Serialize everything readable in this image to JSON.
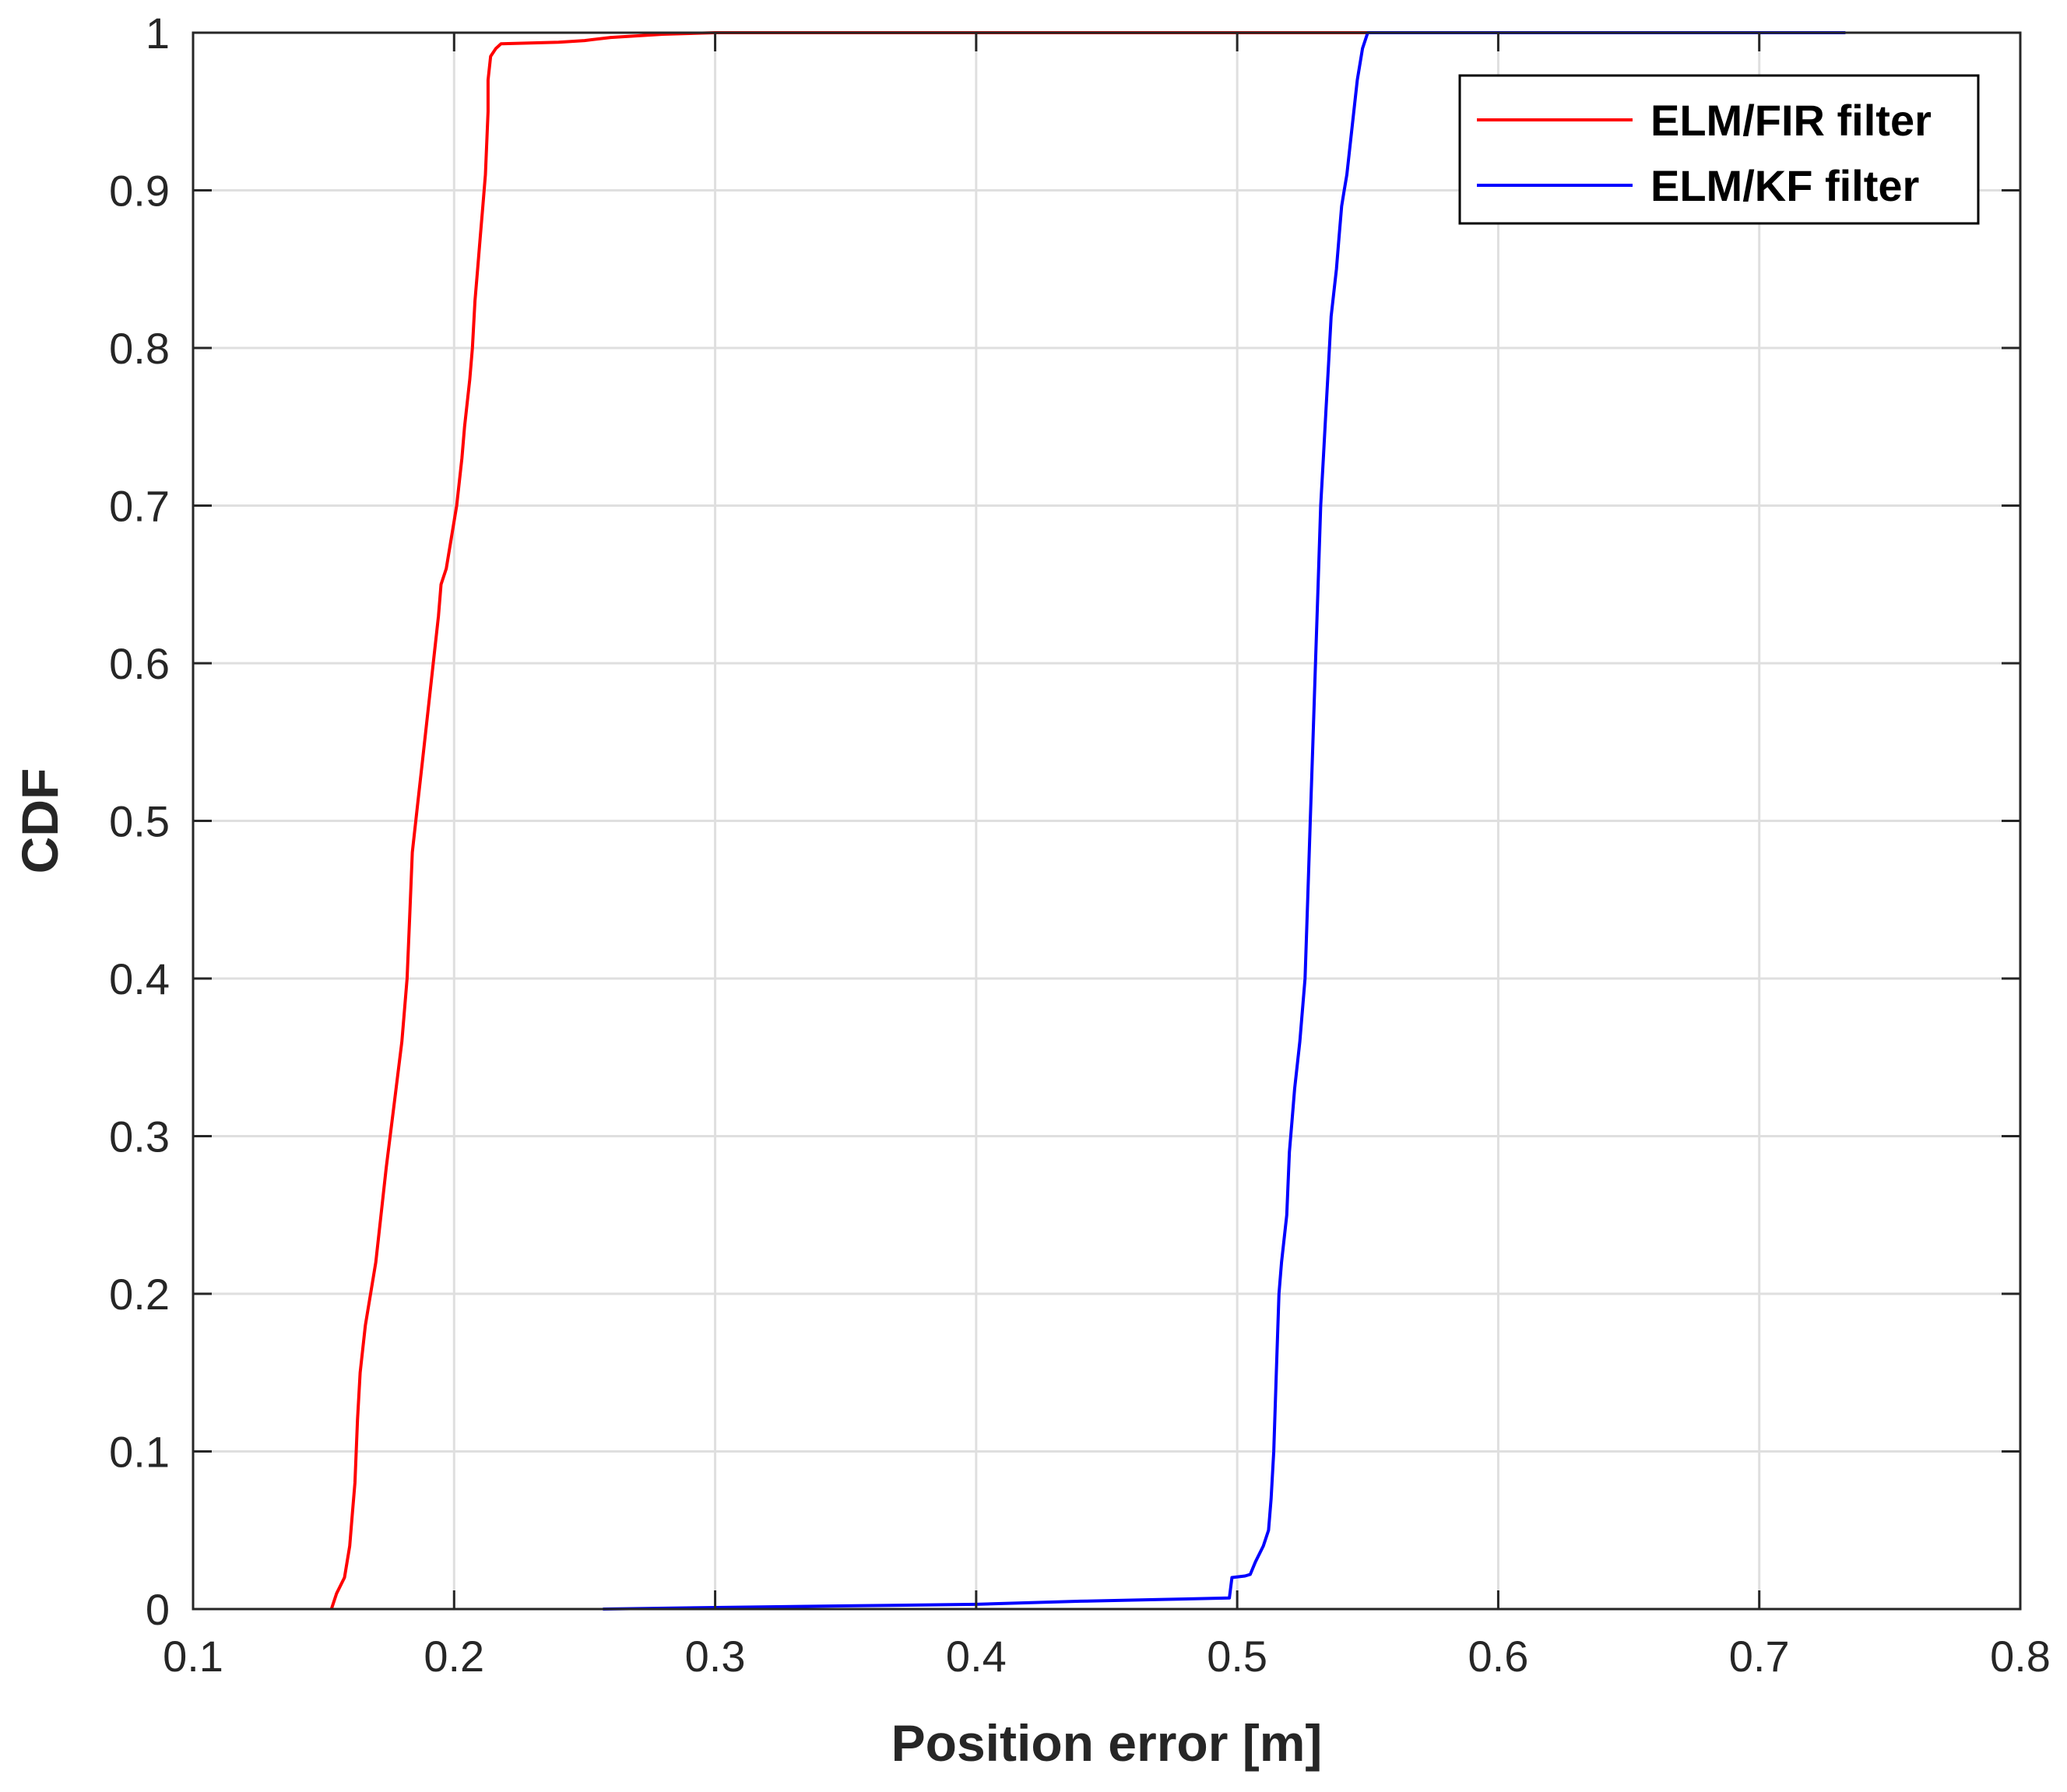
{
  "chart_data": {
    "type": "line",
    "title": "",
    "xlabel": "Position error [m]",
    "ylabel": "CDF",
    "xlim": [
      0.1,
      0.8
    ],
    "ylim": [
      0,
      1
    ],
    "xticks": [
      0.1,
      0.2,
      0.3,
      0.4,
      0.5,
      0.6,
      0.7,
      0.8
    ],
    "yticks": [
      0,
      0.1,
      0.2,
      0.3,
      0.4,
      0.5,
      0.6,
      0.7,
      0.8,
      0.9,
      1
    ],
    "xtick_labels": [
      "0.1",
      "0.2",
      "0.3",
      "0.4",
      "0.5",
      "0.6",
      "0.7",
      "0.8"
    ],
    "ytick_labels": [
      "0",
      "0.1",
      "0.2",
      "0.3",
      "0.4",
      "0.5",
      "0.6",
      "0.7",
      "0.8",
      "0.9",
      "1"
    ],
    "grid": true,
    "legend_position": "top-right",
    "series": [
      {
        "name": "ELM/FIR filter",
        "color": "#ff0000",
        "x": [
          0.153,
          0.155,
          0.158,
          0.16,
          0.161,
          0.162,
          0.163,
          0.164,
          0.166,
          0.17,
          0.172,
          0.174,
          0.177,
          0.18,
          0.182,
          0.183,
          0.184,
          0.186,
          0.188,
          0.19,
          0.192,
          0.194,
          0.195,
          0.197,
          0.199,
          0.201,
          0.203,
          0.204,
          0.206,
          0.207,
          0.208,
          0.209,
          0.21,
          0.211,
          0.212,
          0.213,
          0.213,
          0.214,
          0.216,
          0.218,
          0.24,
          0.25,
          0.26,
          0.28,
          0.3,
          0.55
        ],
        "y": [
          0.0,
          0.01,
          0.02,
          0.04,
          0.06,
          0.08,
          0.12,
          0.15,
          0.18,
          0.22,
          0.25,
          0.28,
          0.32,
          0.36,
          0.4,
          0.44,
          0.48,
          0.51,
          0.54,
          0.57,
          0.6,
          0.63,
          0.65,
          0.66,
          0.68,
          0.7,
          0.73,
          0.75,
          0.78,
          0.8,
          0.83,
          0.85,
          0.87,
          0.89,
          0.91,
          0.95,
          0.97,
          0.985,
          0.99,
          0.993,
          0.994,
          0.995,
          0.997,
          0.999,
          1.0,
          1.0
        ]
      },
      {
        "name": "ELM/KF filter",
        "color": "#0000ff",
        "x": [
          0.257,
          0.3,
          0.35,
          0.4,
          0.44,
          0.47,
          0.497,
          0.498,
          0.503,
          0.505,
          0.507,
          0.51,
          0.512,
          0.513,
          0.514,
          0.515,
          0.516,
          0.517,
          0.519,
          0.52,
          0.521,
          0.522,
          0.524,
          0.526,
          0.527,
          0.528,
          0.529,
          0.53,
          0.531,
          0.532,
          0.533,
          0.534,
          0.535,
          0.536,
          0.538,
          0.539,
          0.54,
          0.541,
          0.542,
          0.544,
          0.546,
          0.548,
          0.55,
          0.6,
          0.7,
          0.733
        ],
        "y": [
          0.0,
          0.001,
          0.002,
          0.003,
          0.005,
          0.006,
          0.007,
          0.02,
          0.021,
          0.022,
          0.03,
          0.04,
          0.05,
          0.07,
          0.1,
          0.15,
          0.2,
          0.22,
          0.25,
          0.29,
          0.31,
          0.33,
          0.36,
          0.4,
          0.45,
          0.5,
          0.55,
          0.6,
          0.65,
          0.7,
          0.73,
          0.76,
          0.79,
          0.82,
          0.85,
          0.87,
          0.89,
          0.9,
          0.91,
          0.94,
          0.97,
          0.99,
          1.0,
          1.0,
          1.0,
          1.0
        ]
      }
    ]
  }
}
